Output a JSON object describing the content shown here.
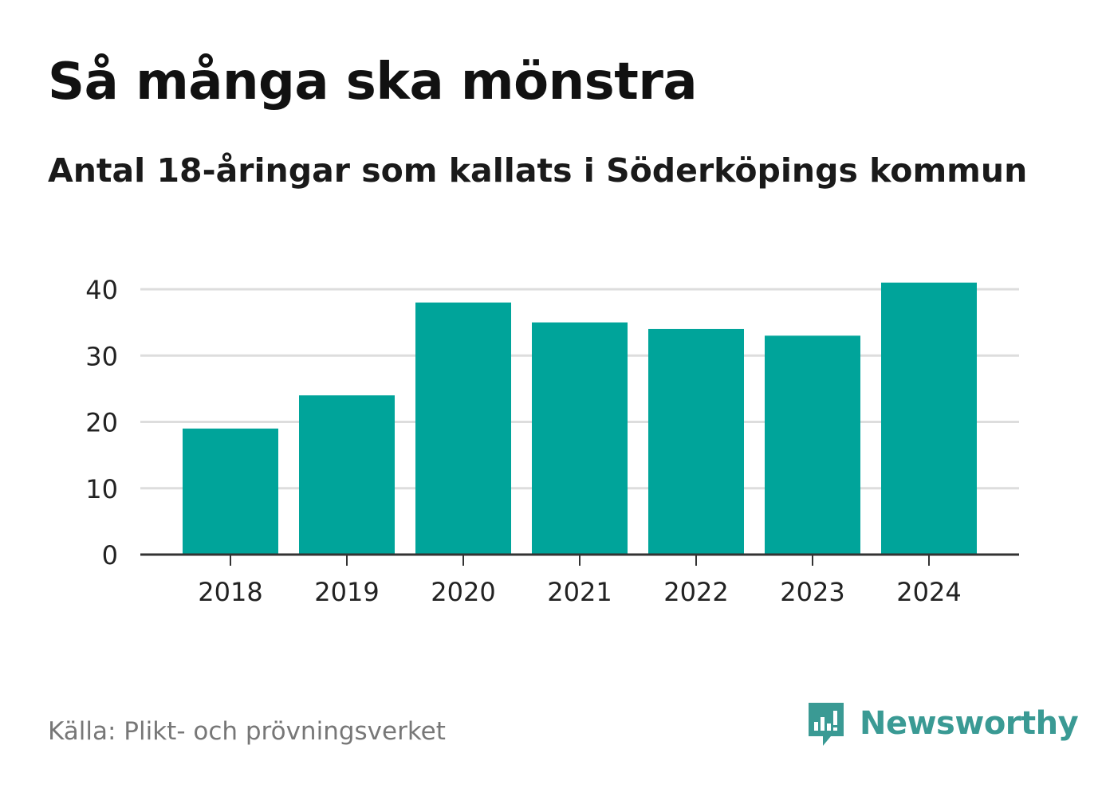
{
  "title": "Så många ska mönstra",
  "subtitle": "Antal 18-åringar som kallats i Söderköpings kommun",
  "source": "Källa: Plikt- och prövningsverket",
  "brand": {
    "name": "Newsworthy",
    "color": "#3a9a94"
  },
  "colors": {
    "bar": "#00a49a",
    "grid": "#dddddd",
    "axis": "#333333",
    "tick_label": "#222222"
  },
  "chart_data": {
    "type": "bar",
    "title": "Så många ska mönstra",
    "subtitle": "Antal 18-åringar som kallats i Söderköpings kommun",
    "categories": [
      "2018",
      "2019",
      "2020",
      "2021",
      "2022",
      "2023",
      "2024"
    ],
    "values": [
      19,
      24,
      38,
      35,
      34,
      33,
      41
    ],
    "xlabel": "",
    "ylabel": "",
    "ylim": [
      0,
      40
    ],
    "yticks": [
      "0",
      "10",
      "20",
      "30",
      "40"
    ],
    "grid": true,
    "legend": "none"
  }
}
